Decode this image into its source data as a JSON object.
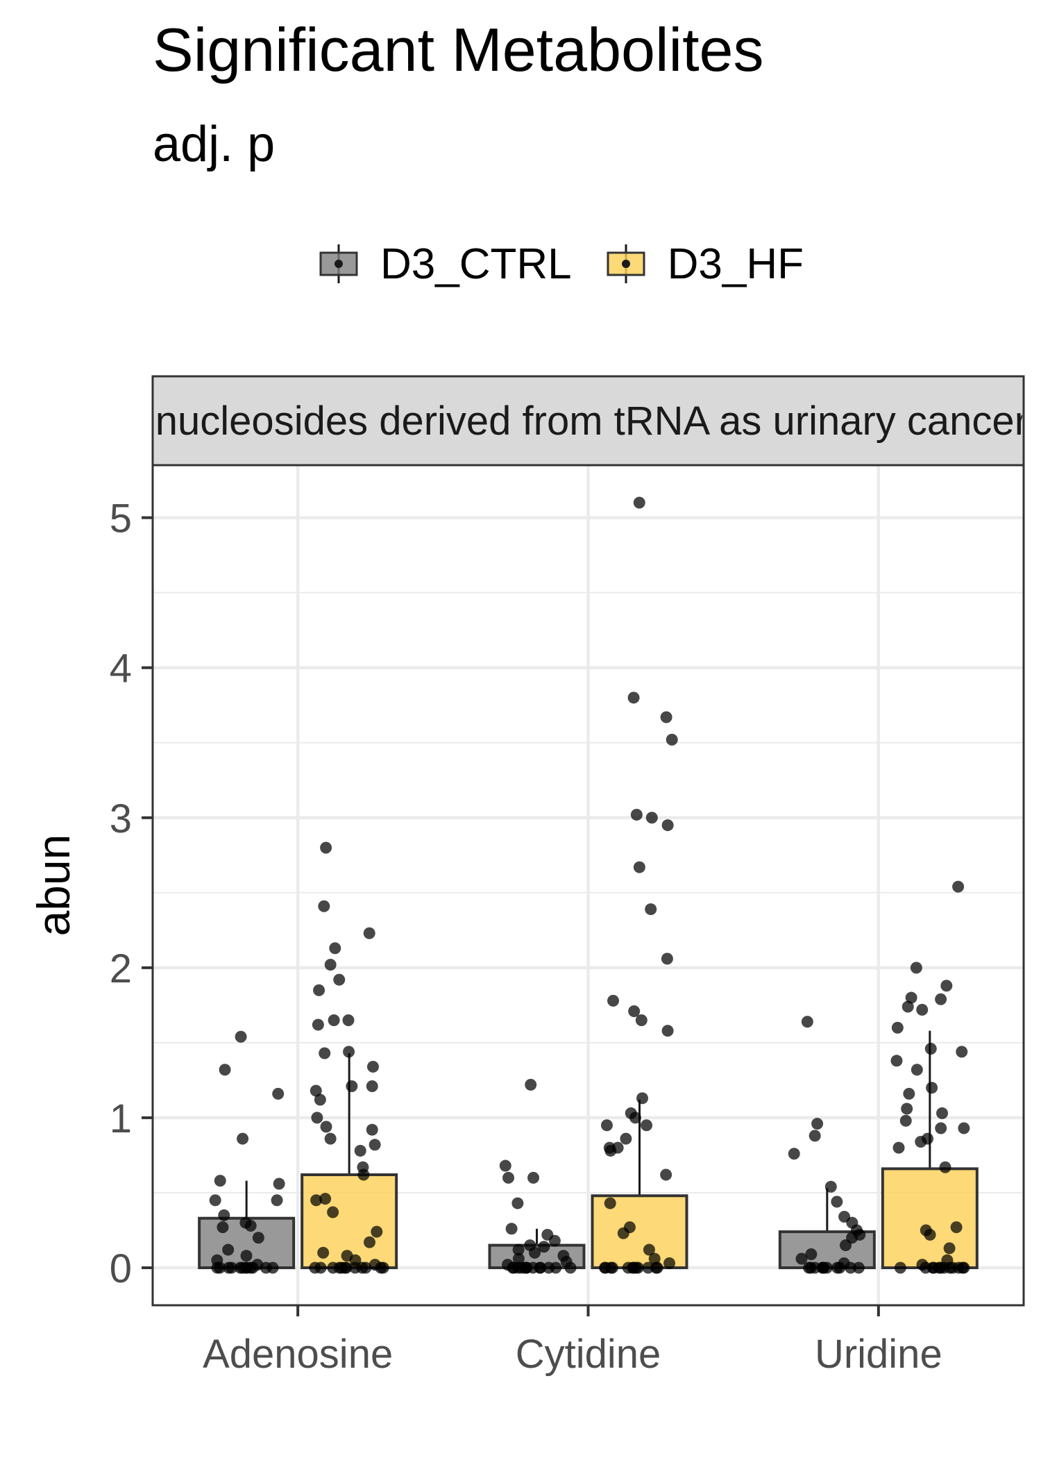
{
  "chart_data": {
    "type": "bar",
    "title": "Significant Metabolites",
    "subtitle": "adj. p",
    "facet_label": "Modified nucleosides derived from tRNA as urinary cancer markers",
    "xlabel": "",
    "ylabel": "abun",
    "ylim": [
      -0.25,
      5.35
    ],
    "y_ticks": [
      0,
      1,
      2,
      3,
      4,
      5
    ],
    "categories": [
      "Adenosine",
      "Cytidine",
      "Uridine"
    ],
    "legend_position": "top",
    "grid": true,
    "series": [
      {
        "name": "D3_CTRL",
        "color": "#808080",
        "values": [
          0.33,
          0.15,
          0.24
        ],
        "error_upper": [
          0.58,
          0.26,
          0.53
        ],
        "points": [
          [
            0,
            0,
            0,
            0,
            0,
            0,
            0,
            0,
            0,
            0,
            0,
            0,
            0.02,
            0.05,
            0.08,
            0.12,
            0.2,
            0.27,
            0.28,
            0.3,
            0.35,
            0.45,
            0.45,
            0.56,
            0.58,
            0.86,
            1.16,
            1.32,
            1.54
          ],
          [
            0,
            0,
            0,
            0,
            0,
            0,
            0,
            0,
            0,
            0,
            0,
            0,
            0,
            0.02,
            0.04,
            0.06,
            0.08,
            0.1,
            0.12,
            0.14,
            0.15,
            0.18,
            0.22,
            0.26,
            0.43,
            0.6,
            0.6,
            0.68,
            1.22
          ],
          [
            0,
            0,
            0,
            0,
            0,
            0,
            0,
            0,
            0,
            0,
            0,
            0,
            0.03,
            0.06,
            0.09,
            0.15,
            0.2,
            0.22,
            0.25,
            0.3,
            0.34,
            0.44,
            0.54,
            0.76,
            0.88,
            0.96,
            1.64
          ]
        ]
      },
      {
        "name": "D3_HF",
        "color": "#FCCF55",
        "values": [
          0.62,
          0.48,
          0.66
        ],
        "error_upper": [
          1.43,
          1.12,
          1.58
        ],
        "points": [
          [
            0,
            0,
            0,
            0,
            0,
            0,
            0,
            0,
            0,
            0,
            0,
            0,
            0.02,
            0.05,
            0.08,
            0.1,
            0.17,
            0.24,
            0.37,
            0.45,
            0.46,
            0.62,
            0.67,
            0.78,
            0.82,
            0.86,
            0.92,
            0.94,
            1.0,
            1.12,
            1.18,
            1.21,
            1.21,
            1.34,
            1.43,
            1.44,
            1.62,
            1.65,
            1.65,
            1.85,
            1.92,
            2.02,
            2.13,
            2.23,
            2.41,
            2.8
          ],
          [
            0,
            0,
            0,
            0,
            0,
            0,
            0,
            0,
            0,
            0,
            0,
            0,
            0.03,
            0.06,
            0.12,
            0.23,
            0.27,
            0.43,
            0.62,
            0.78,
            0.8,
            0.8,
            0.86,
            0.95,
            0.95,
            1.0,
            1.03,
            1.13,
            1.58,
            1.65,
            1.71,
            1.78,
            2.06,
            2.39,
            2.67,
            2.95,
            3.0,
            3.02,
            3.52,
            3.67,
            3.8,
            5.1
          ],
          [
            0,
            0,
            0,
            0,
            0,
            0,
            0,
            0,
            0,
            0,
            0,
            0,
            0.02,
            0.05,
            0.13,
            0.22,
            0.25,
            0.27,
            0.67,
            0.8,
            0.84,
            0.86,
            0.93,
            0.93,
            0.98,
            1.03,
            1.06,
            1.16,
            1.2,
            1.32,
            1.38,
            1.44,
            1.46,
            1.6,
            1.72,
            1.74,
            1.79,
            1.8,
            1.88,
            2.0,
            2.54
          ]
        ]
      }
    ]
  }
}
